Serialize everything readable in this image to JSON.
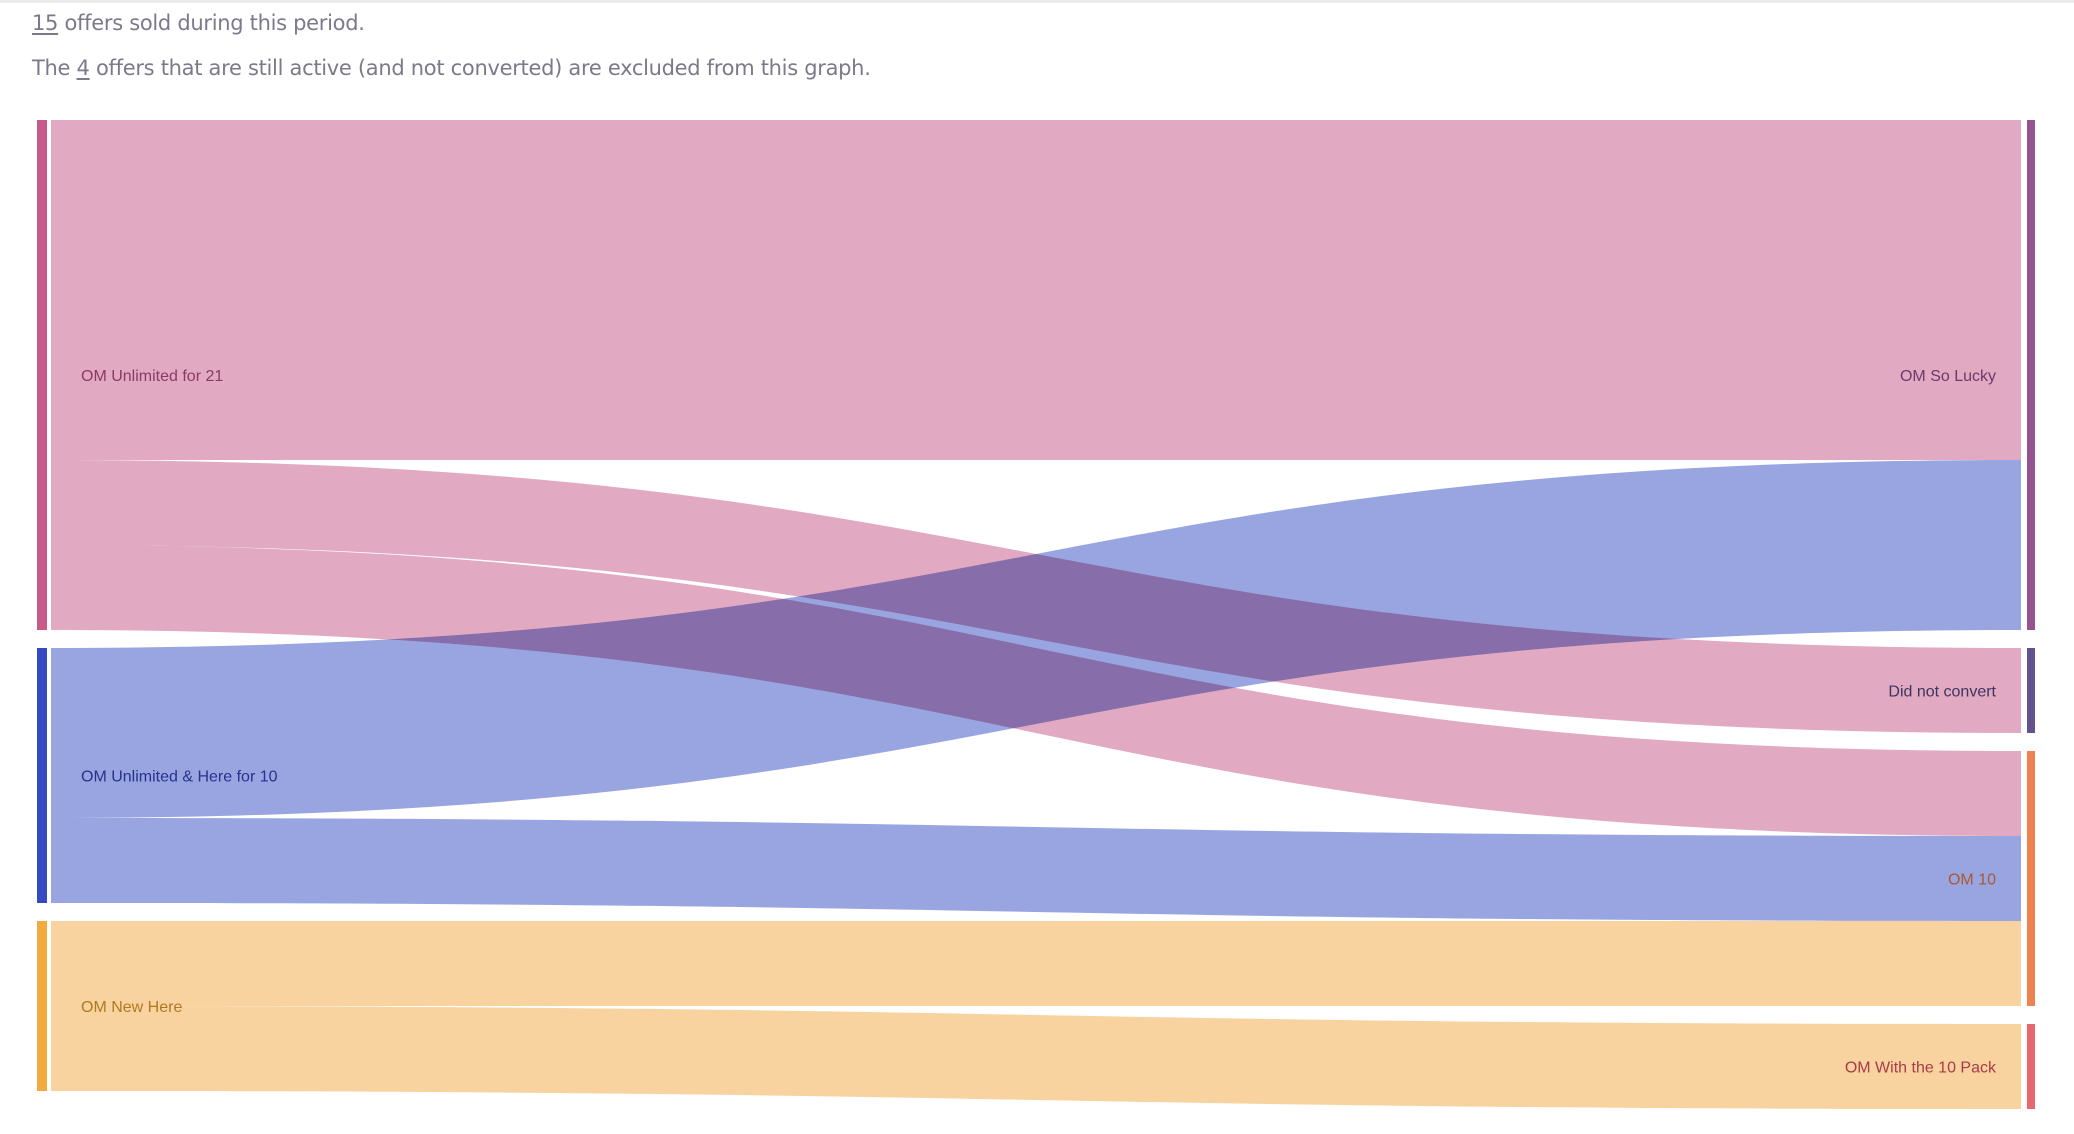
{
  "summary": {
    "sold_count": "15",
    "sold_text": " offers sold during this period.",
    "active_prefix": "The ",
    "active_count": "4",
    "active_text": " offers that are still active (and not converted) are excluded from this graph."
  },
  "chart_data": {
    "type": "sankey",
    "title": "",
    "sources": [
      {
        "name": "OM Unlimited for 21",
        "bar_color": "#c85a8a",
        "link_color": "#e1aac2",
        "label_color": "#8b3a64"
      },
      {
        "name": "OM Unlimited & Here for 10",
        "bar_color": "#3449c2",
        "link_color": "#99a5e0",
        "label_color": "#26328c"
      },
      {
        "name": "OM New Here",
        "bar_color": "#f2a93d",
        "link_color": "#f8d29f",
        "label_color": "#b07a22"
      }
    ],
    "targets": [
      {
        "name": "OM So Lucky",
        "bar_color": "#955490",
        "label_color": "#6a3a6a"
      },
      {
        "name": "Did not convert",
        "bar_color": "#625390",
        "label_color": "#3d3560"
      },
      {
        "name": "OM 10",
        "bar_color": "#ee8350",
        "label_color": "#a85a30"
      },
      {
        "name": "OM With the 10 Pack",
        "bar_color": "#e86870",
        "label_color": "#a83c48"
      }
    ],
    "links": [
      {
        "source": 0,
        "target": 0,
        "value": 4
      },
      {
        "source": 0,
        "target": 1,
        "value": 1
      },
      {
        "source": 0,
        "target": 2,
        "value": 1
      },
      {
        "source": 1,
        "target": 0,
        "value": 2
      },
      {
        "source": 1,
        "target": 2,
        "value": 1
      },
      {
        "source": 2,
        "target": 2,
        "value": 1
      },
      {
        "source": 2,
        "target": 3,
        "value": 1
      }
    ]
  }
}
